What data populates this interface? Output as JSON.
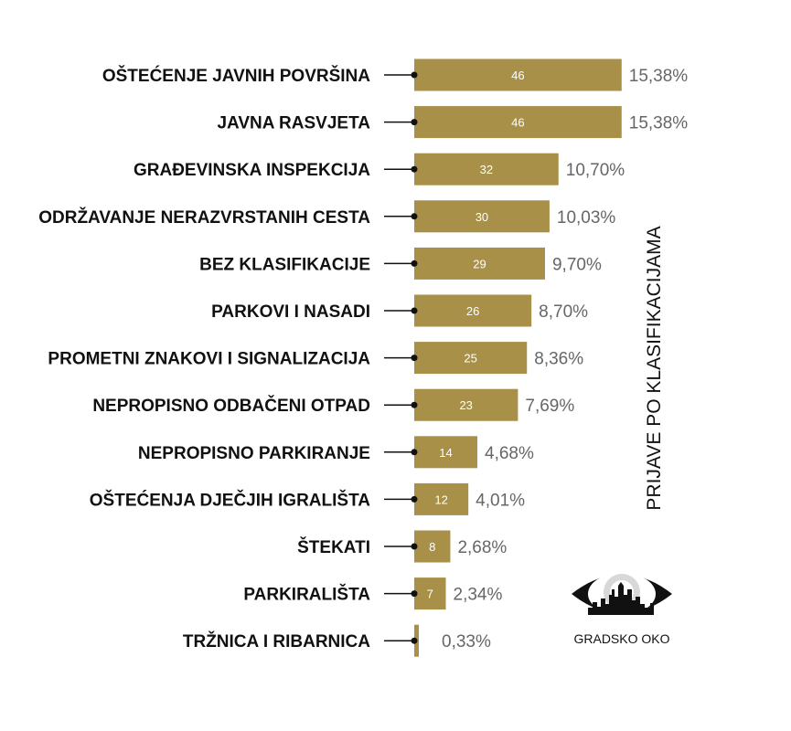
{
  "chart_data": {
    "type": "bar",
    "orientation": "horizontal",
    "categories": [
      "OŠTEĆENJE JAVNIH POVRŠINA",
      "JAVNA RASVJETA",
      "GRAĐEVINSKA INSPEKCIJA",
      "ODRŽAVANJE NERAZVRSTANIH CESTA",
      "BEZ KLASIFIKACIJE",
      "PARKOVI I NASADI",
      "PROMETNI ZNAKOVI I SIGNALIZACIJA",
      "NEPROPISNO ODBAČENI OTPAD",
      "NEPROPISNO PARKIRANJE",
      "OŠTEĆENJA DJEČJIH IGRALIŠTA",
      "ŠTEKATI",
      "PARKIRALIŠTA",
      "TRŽNICA I RIBARNICA"
    ],
    "values": [
      46,
      46,
      32,
      30,
      29,
      26,
      25,
      23,
      14,
      12,
      8,
      7,
      1
    ],
    "percent_labels": [
      "15,38%",
      "15,38%",
      "10,70%",
      "10,03%",
      "9,70%",
      "8,70%",
      "8,36%",
      "7,69%",
      "4,68%",
      "4,01%",
      "2,68%",
      "2,34%",
      "0,33%"
    ],
    "ylabel": "PRIJAVE PO KLASIFIKACIJAMA",
    "grid": false,
    "colors": {
      "bar": "#a89048",
      "bar_label": "#ffffff",
      "small_value_label": "#a89048",
      "percent_label": "#666666",
      "category_label": "#111111"
    }
  },
  "logo": {
    "text": "GRADSKO OKO",
    "icon": "city-eye-icon"
  }
}
